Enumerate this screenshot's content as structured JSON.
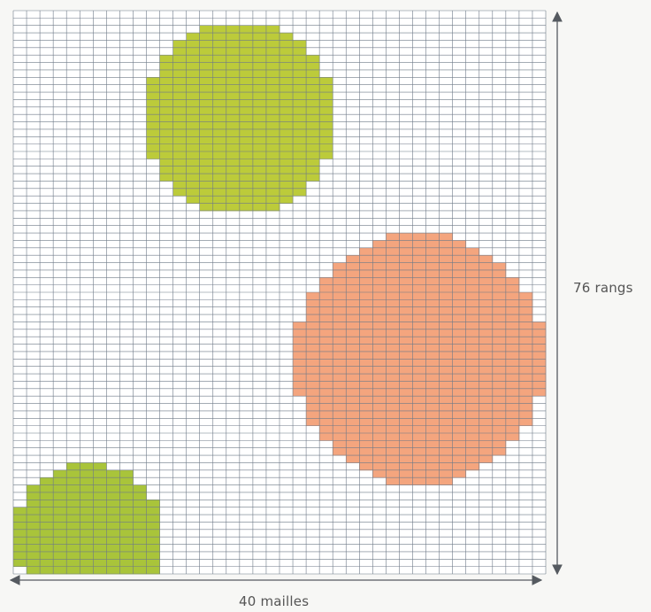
{
  "grid": {
    "stitches": 40,
    "rows": 76,
    "background_color": "#ffffff",
    "line_color": "#6f7a88"
  },
  "motifs": [
    {
      "name": "green-dot-top",
      "color": "#bccb3a",
      "center_stitch": 17,
      "center_row": 14.5,
      "radius_stitches": 7.2
    },
    {
      "name": "orange-dot-right",
      "color": "#f4a57e",
      "center_stitch": 30.5,
      "center_row": 47,
      "radius_stitches": 9.4
    },
    {
      "name": "green-dot-bottom",
      "color": "#a9c43a",
      "center_stitch": 5.6,
      "center_row": 71,
      "radius_stitches": 5.6
    }
  ],
  "dimensions": {
    "rows_label": "76 rangs",
    "stitches_label": "40 mailles",
    "arrow_color": "#555a60"
  }
}
